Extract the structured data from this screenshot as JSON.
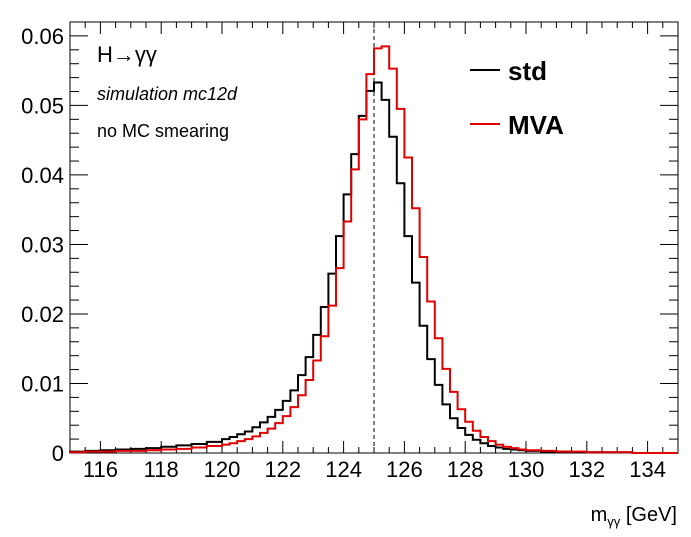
{
  "chart_data": {
    "type": "line",
    "title": "",
    "xlabel_main": "m",
    "xlabel_sub": "γγ",
    "xlabel_unit": " [GeV]",
    "ylabel": "",
    "xlim": [
      115,
      135
    ],
    "ylim": [
      0,
      0.062
    ],
    "x_ticks": [
      {
        "value": 116,
        "label": "116"
      },
      {
        "value": 118,
        "label": "118"
      },
      {
        "value": 120,
        "label": "120"
      },
      {
        "value": 122,
        "label": "122"
      },
      {
        "value": 124,
        "label": "124"
      },
      {
        "value": 126,
        "label": "126"
      },
      {
        "value": 128,
        "label": "128"
      },
      {
        "value": 130,
        "label": "130"
      },
      {
        "value": 132,
        "label": "132"
      },
      {
        "value": 134,
        "label": "134"
      }
    ],
    "y_ticks": [
      {
        "value": 0,
        "label": "0"
      },
      {
        "value": 0.01,
        "label": "0.01"
      },
      {
        "value": 0.02,
        "label": "0.02"
      },
      {
        "value": 0.03,
        "label": "0.03"
      },
      {
        "value": 0.04,
        "label": "0.04"
      },
      {
        "value": 0.05,
        "label": "0.05"
      },
      {
        "value": 0.06,
        "label": "0.06"
      }
    ],
    "reference_line": {
      "x": 125,
      "style": "dashed"
    },
    "bin_edges": [
      115.0,
      115.5,
      116.0,
      116.5,
      117.0,
      117.5,
      118.0,
      118.5,
      119.0,
      119.5,
      120.0,
      120.25,
      120.5,
      120.75,
      121.0,
      121.25,
      121.5,
      121.75,
      122.0,
      122.25,
      122.5,
      122.75,
      123.0,
      123.25,
      123.5,
      123.75,
      124.0,
      124.25,
      124.5,
      124.75,
      125.0,
      125.25,
      125.5,
      125.75,
      126.0,
      126.25,
      126.5,
      126.75,
      127.0,
      127.25,
      127.5,
      127.75,
      128.0,
      128.25,
      128.5,
      128.75,
      129.0,
      129.25,
      129.5,
      129.75,
      130.0,
      130.5,
      131.0,
      131.5,
      132.0,
      132.5,
      133.0,
      133.5,
      134.0,
      134.5,
      135.0
    ],
    "series": [
      {
        "name": "std",
        "color": "#000000",
        "values": [
          0.0002,
          0.0003,
          0.0004,
          0.0005,
          0.0006,
          0.0007,
          0.0009,
          0.0011,
          0.0013,
          0.0016,
          0.002,
          0.0023,
          0.0027,
          0.0031,
          0.0037,
          0.0044,
          0.0052,
          0.0062,
          0.0075,
          0.009,
          0.0112,
          0.0138,
          0.017,
          0.021,
          0.0258,
          0.0312,
          0.0372,
          0.043,
          0.0485,
          0.0521,
          0.0533,
          0.0508,
          0.0455,
          0.0388,
          0.0312,
          0.0245,
          0.0183,
          0.0135,
          0.0098,
          0.007,
          0.005,
          0.0036,
          0.0026,
          0.0019,
          0.0014,
          0.001,
          0.0008,
          0.0006,
          0.0005,
          0.0004,
          0.0003,
          0.0002,
          0.0002,
          0.0001,
          0.0001,
          0.0001,
          0.0001,
          0.0,
          0.0,
          0.0
        ]
      },
      {
        "name": "MVA",
        "color": "#e00000",
        "values": [
          0.0001,
          0.0002,
          0.0002,
          0.0003,
          0.0003,
          0.0004,
          0.0005,
          0.0006,
          0.0008,
          0.001,
          0.0012,
          0.0014,
          0.0017,
          0.002,
          0.0024,
          0.0029,
          0.0035,
          0.0043,
          0.0053,
          0.0066,
          0.0083,
          0.0105,
          0.0133,
          0.0168,
          0.0212,
          0.0266,
          0.0333,
          0.0408,
          0.048,
          0.0545,
          0.0582,
          0.0585,
          0.0553,
          0.0495,
          0.0425,
          0.0352,
          0.0282,
          0.0218,
          0.0165,
          0.0121,
          0.0088,
          0.0063,
          0.0045,
          0.0032,
          0.0023,
          0.0017,
          0.0012,
          0.0009,
          0.0007,
          0.0005,
          0.0004,
          0.0003,
          0.0002,
          0.0002,
          0.0001,
          0.0001,
          0.0001,
          0.0,
          0.0,
          0.0
        ]
      }
    ]
  },
  "annotations": {
    "process_H": "H",
    "process_arrow": "→",
    "process_gg": "γγ",
    "simulation": "simulation mc12d",
    "smearing": "no MC smearing"
  },
  "legend": {
    "placement": "top-right",
    "entries": [
      {
        "label": "std",
        "color": "#000000"
      },
      {
        "label": "MVA",
        "color": "#e00000"
      }
    ]
  }
}
